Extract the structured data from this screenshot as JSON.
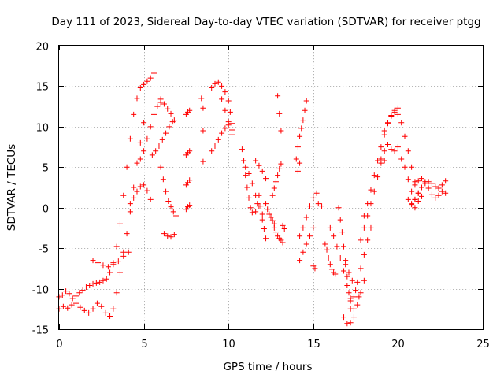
{
  "chart_data": {
    "type": "scatter",
    "title": "Day 111 of 2023, Sidereal Day-to-day VTEC variation (SDTVAR) for receiver ptgg",
    "xlabel": "GPS time / hours",
    "ylabel": "SDTVAR / TECUs",
    "xlim": [
      0,
      25
    ],
    "ylim": [
      -15,
      20
    ],
    "grid": true,
    "marker": "+",
    "color": "#ff0000",
    "x_ticks": [
      "0",
      "5",
      "10",
      "15",
      "20",
      "25"
    ],
    "y_ticks": [
      "-15",
      "-10",
      "-5",
      "0",
      "5",
      "10",
      "15",
      "20"
    ],
    "series": [
      {
        "segments": [
          {
            "x": [
              0.0,
              0.2,
              0.4,
              0.6,
              0.8,
              1.0,
              1.2,
              1.4,
              1.6,
              1.8,
              2.0,
              2.2,
              2.4,
              2.6,
              2.8,
              3.0,
              3.2,
              3.4,
              3.6,
              3.8,
              4.0,
              4.2,
              4.4,
              4.6,
              4.8,
              5.0,
              5.2,
              5.4,
              5.6
            ],
            "y": [
              -11.0,
              -10.8,
              -10.3,
              -10.6,
              -11.2,
              -10.9,
              -10.5,
              -10.2,
              -9.8,
              -9.6,
              -9.4,
              -9.3,
              -9.2,
              -9.0,
              -8.8,
              -8.0,
              -6.8,
              -4.8,
              -2.0,
              1.5,
              5.0,
              8.5,
              11.5,
              13.5,
              14.8,
              15.2,
              15.6,
              16.0,
              16.6
            ]
          },
          {
            "x": [
              0.0,
              0.25,
              0.5,
              0.75,
              1.0,
              1.25,
              1.5,
              1.75,
              2.0,
              2.25,
              2.5,
              2.75,
              3.0,
              3.2,
              3.4,
              3.6,
              3.8,
              4.0,
              4.2,
              4.4,
              4.6,
              4.8,
              5.0
            ],
            "y": [
              -12.5,
              -12.2,
              -12.4,
              -12.0,
              -11.8,
              -12.3,
              -12.7,
              -13.0,
              -12.5,
              -11.8,
              -12.2,
              -13.0,
              -13.4,
              -12.5,
              -10.5,
              -8.0,
              -5.5,
              -3.2,
              -0.5,
              2.5,
              5.5,
              8.0,
              10.5
            ]
          },
          {
            "x": [
              2.0,
              2.3,
              2.6,
              2.9,
              3.2,
              3.5,
              3.8,
              4.1
            ],
            "y": [
              -6.5,
              -6.8,
              -7.1,
              -7.3,
              -7.0,
              -6.6,
              -6.0,
              -5.5
            ]
          },
          {
            "x": [
              4.2,
              4.4,
              4.6,
              4.8,
              5.0,
              5.2,
              5.4
            ],
            "y": [
              0.5,
              1.2,
              2.0,
              2.6,
              2.8,
              2.1,
              1.0
            ]
          },
          {
            "x": [
              4.8,
              5.0,
              5.2,
              5.4,
              5.6,
              5.8,
              6.0
            ],
            "y": [
              6.0,
              7.0,
              8.5,
              10.0,
              11.5,
              12.5,
              13.0
            ]
          },
          {
            "x": [
              5.5,
              5.7,
              5.9,
              6.1,
              6.3,
              6.5,
              6.7
            ],
            "y": [
              6.5,
              7.0,
              7.6,
              8.4,
              9.2,
              10.0,
              10.6
            ]
          },
          {
            "x": [
              6.0,
              6.2,
              6.4,
              6.6,
              6.8
            ],
            "y": [
              13.4,
              12.8,
              12.2,
              11.6,
              10.8
            ]
          },
          {
            "x": [
              6.0,
              6.15,
              6.3,
              6.45,
              6.6,
              6.75,
              6.9
            ],
            "y": [
              5.0,
              3.5,
              2.0,
              0.8,
              0.1,
              -0.5,
              -1.0
            ]
          },
          {
            "x": [
              6.2,
              6.4,
              6.6,
              6.8
            ],
            "y": [
              -3.2,
              -3.5,
              -3.6,
              -3.3
            ]
          },
          {
            "x": [
              7.5,
              7.6,
              7.7
            ],
            "y": [
              11.5,
              11.8,
              12.0
            ]
          },
          {
            "x": [
              7.5,
              7.6,
              7.7
            ],
            "y": [
              6.5,
              6.8,
              7.0
            ]
          },
          {
            "x": [
              7.5,
              7.6,
              7.7
            ],
            "y": [
              2.8,
              3.1,
              3.4
            ]
          },
          {
            "x": [
              7.5,
              7.6,
              7.7
            ],
            "y": [
              -0.2,
              0.1,
              0.3
            ]
          },
          {
            "x": [
              8.4,
              8.5
            ],
            "y": [
              13.5,
              12.3
            ]
          },
          {
            "x": [
              8.5
            ],
            "y": [
              9.5
            ]
          },
          {
            "x": [
              8.5
            ],
            "y": [
              5.7
            ]
          },
          {
            "x": [
              9.0,
              9.2,
              9.4,
              9.6,
              9.8,
              10.0,
              10.1,
              10.2
            ],
            "y": [
              14.8,
              15.3,
              15.5,
              15.0,
              14.3,
              13.2,
              11.8,
              10.4
            ]
          },
          {
            "x": [
              9.0,
              9.2,
              9.4,
              9.6,
              9.8,
              10.0,
              10.2
            ],
            "y": [
              7.0,
              7.6,
              8.4,
              9.2,
              9.8,
              10.2,
              9.6
            ]
          },
          {
            "x": [
              9.6,
              9.8,
              10.0,
              10.2
            ],
            "y": [
              13.4,
              12.0,
              10.6,
              9.0
            ]
          },
          {
            "x": [
              10.8,
              10.9,
              11.0,
              11.1,
              11.2,
              11.3,
              11.4
            ],
            "y": [
              7.2,
              5.8,
              4.0,
              2.5,
              1.2,
              0.0,
              -0.6
            ]
          },
          {
            "x": [
              11.0,
              11.2,
              11.4,
              11.6,
              11.8,
              12.0
            ],
            "y": [
              5.0,
              4.2,
              3.0,
              1.5,
              0.2,
              -0.8
            ]
          },
          {
            "x": [
              11.6,
              11.7,
              11.8,
              11.9,
              12.0,
              12.1,
              12.2
            ],
            "y": [
              -0.5,
              0.5,
              1.5,
              0.2,
              -1.5,
              -2.6,
              -3.8
            ]
          },
          {
            "x": [
              11.6,
              11.8,
              12.0,
              12.2
            ],
            "y": [
              5.8,
              5.2,
              4.5,
              3.6
            ]
          },
          {
            "x": [
              12.2,
              12.3,
              12.4,
              12.5,
              12.6,
              12.7
            ],
            "y": [
              0.5,
              -0.2,
              -0.8,
              -1.2,
              -1.6,
              -2.0
            ]
          },
          {
            "x": [
              12.7,
              12.8,
              12.9,
              13.0,
              13.1,
              13.2
            ],
            "y": [
              -2.5,
              -3.0,
              -3.5,
              -3.8,
              -4.0,
              -4.3
            ]
          },
          {
            "x": [
              12.6,
              12.7,
              12.8,
              12.9,
              13.0,
              13.1
            ],
            "y": [
              1.5,
              2.4,
              3.2,
              4.0,
              4.8,
              5.4
            ]
          },
          {
            "x": [
              12.9,
              13.0,
              13.1
            ],
            "y": [
              13.8,
              11.6,
              9.5
            ]
          },
          {
            "x": [
              13.2,
              13.3
            ],
            "y": [
              -2.2,
              -2.6
            ]
          },
          {
            "x": [
              14.2,
              14.4,
              14.6,
              14.8,
              15.0
            ],
            "y": [
              -6.5,
              -5.5,
              -4.5,
              -3.5,
              -2.5
            ]
          },
          {
            "x": [
              14.2,
              14.4,
              14.6,
              14.8,
              15.0,
              15.2
            ],
            "y": [
              -3.5,
              -2.5,
              -1.2,
              0.2,
              1.2,
              1.8
            ]
          },
          {
            "x": [
              14.0,
              14.1,
              14.2,
              14.3,
              14.4,
              14.5,
              14.6
            ],
            "y": [
              6.0,
              7.5,
              8.8,
              9.8,
              10.8,
              12.0,
              13.2
            ]
          },
          {
            "x": [
              14.1,
              14.2
            ],
            "y": [
              4.5,
              5.5
            ]
          },
          {
            "x": [
              15.0,
              15.1
            ],
            "y": [
              -7.2,
              -7.5
            ]
          },
          {
            "x": [
              15.3,
              15.5
            ],
            "y": [
              0.5,
              0.2
            ]
          },
          {
            "x": [
              15.7,
              15.8,
              15.9,
              16.0,
              16.1,
              16.2,
              16.3
            ],
            "y": [
              -4.5,
              -5.2,
              -6.2,
              -7.0,
              -7.6,
              -8.0,
              -8.2
            ]
          },
          {
            "x": [
              16.0,
              16.2,
              16.4,
              16.6,
              16.8,
              17.0,
              17.2,
              17.4
            ],
            "y": [
              -2.5,
              -3.5,
              -4.8,
              -6.2,
              -7.8,
              -9.6,
              -11.2,
              -12.5
            ]
          },
          {
            "x": [
              16.5,
              16.6,
              16.7,
              16.8,
              16.9,
              17.0,
              17.1,
              17.2
            ],
            "y": [
              0.0,
              -1.5,
              -3.0,
              -4.8,
              -6.5,
              -8.5,
              -10.5,
              -11.5
            ]
          },
          {
            "x": [
              16.8,
              17.0,
              17.2,
              17.4,
              17.6,
              17.8,
              18.0
            ],
            "y": [
              -13.5,
              -14.3,
              -14.2,
              -13.5,
              -12.0,
              -10.5,
              -9.0
            ]
          },
          {
            "x": [
              17.2,
              17.4,
              17.6,
              17.8,
              18.0,
              18.2,
              18.4
            ],
            "y": [
              -12.5,
              -11.0,
              -9.2,
              -7.5,
              -5.8,
              -4.0,
              -2.5
            ]
          },
          {
            "x": [
              16.9,
              17.1,
              17.3,
              17.5,
              17.7
            ],
            "y": [
              -7.0,
              -8.0,
              -9.0,
              -10.2,
              -11.0
            ]
          },
          {
            "x": [
              17.8,
              18.0,
              18.2,
              18.4,
              18.6,
              18.8,
              19.0,
              19.2
            ],
            "y": [
              -4.0,
              -2.5,
              -1.0,
              0.5,
              2.0,
              3.8,
              5.5,
              7.0
            ]
          },
          {
            "x": [
              18.0,
              18.2,
              18.4,
              18.6,
              18.8,
              19.0,
              19.2,
              19.4,
              19.6,
              19.8,
              20.0
            ],
            "y": [
              -1.0,
              0.5,
              2.2,
              4.0,
              5.8,
              7.5,
              9.0,
              10.4,
              11.4,
              12.0,
              12.3
            ]
          },
          {
            "x": [
              19.2,
              19.4,
              19.6,
              19.8,
              20.0,
              20.2,
              20.4,
              20.6,
              20.8,
              21.0,
              21.2
            ],
            "y": [
              9.5,
              10.5,
              11.3,
              11.8,
              11.5,
              10.5,
              8.8,
              7.0,
              5.0,
              3.2,
              1.8
            ]
          },
          {
            "x": [
              19.4,
              19.6,
              19.8,
              20.0,
              20.2,
              20.4,
              20.6,
              20.8,
              21.0
            ],
            "y": [
              7.8,
              7.2,
              7.0,
              7.5,
              6.0,
              5.0,
              3.5,
              2.0,
              1.0
            ]
          },
          {
            "x": [
              19.0,
              19.2
            ],
            "y": [
              6.0,
              5.8
            ]
          },
          {
            "x": [
              20.8,
              21.0,
              21.2,
              21.4,
              21.6,
              21.8,
              22.0,
              22.2,
              22.4,
              22.6,
              22.8
            ],
            "y": [
              0.5,
              1.0,
              1.8,
              2.5,
              3.0,
              3.2,
              3.0,
              2.6,
              2.4,
              2.8,
              3.3
            ]
          },
          {
            "x": [
              21.0,
              21.2,
              21.4,
              21.6,
              21.8,
              22.0,
              22.2,
              22.4,
              22.6,
              22.8
            ],
            "y": [
              2.8,
              3.3,
              3.6,
              3.2,
              2.4,
              1.6,
              1.2,
              1.5,
              2.0,
              1.8
            ]
          },
          {
            "x": [
              20.6,
              20.8,
              21.0,
              21.2,
              21.4
            ],
            "y": [
              1.0,
              0.4,
              0.0,
              0.8,
              1.4
            ]
          }
        ]
      }
    ]
  }
}
